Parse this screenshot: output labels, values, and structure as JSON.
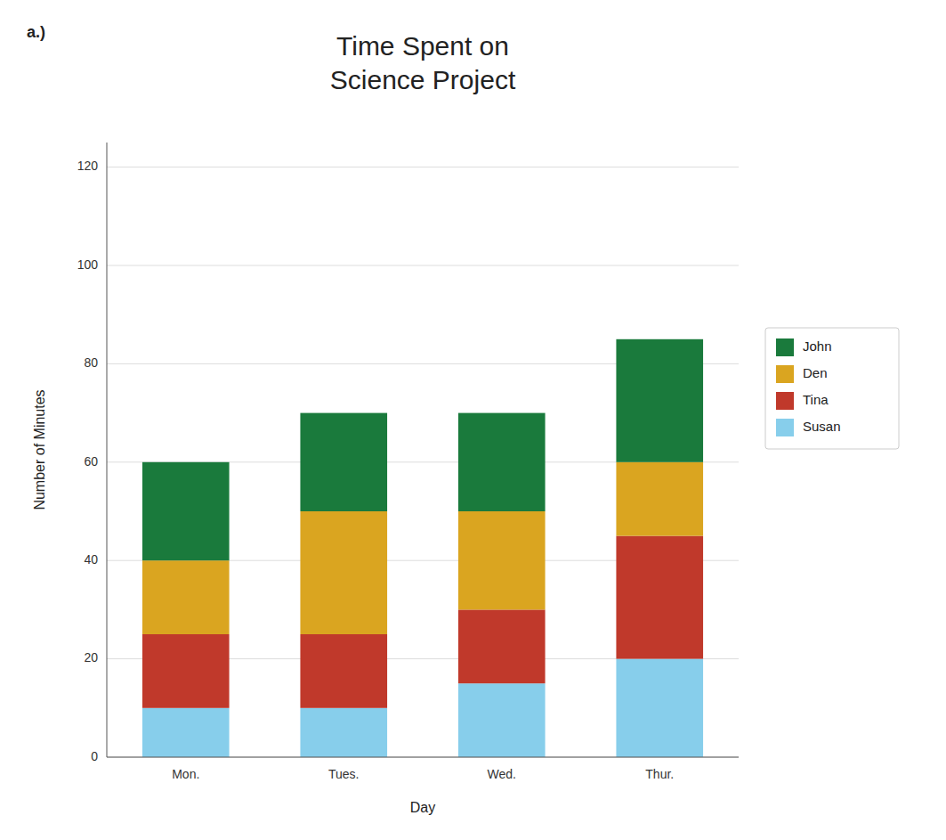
{
  "chart_data": {
    "type": "bar",
    "stacked": true,
    "title": "Time Spent on\nScience Project",
    "annotation": "a.)",
    "xlabel": "Day",
    "ylabel": "Number of Minutes",
    "categories": [
      "Mon.",
      "Tues.",
      "Wed.",
      "Thur."
    ],
    "series": [
      {
        "name": "Susan",
        "color": "#87CEEB",
        "values": [
          10,
          10,
          15,
          20
        ]
      },
      {
        "name": "Tina",
        "color": "#C0392B",
        "values": [
          15,
          15,
          15,
          25
        ]
      },
      {
        "name": "Den",
        "color": "#DAA520",
        "values": [
          15,
          25,
          20,
          15
        ]
      },
      {
        "name": "John",
        "color": "#1A7A3C",
        "values": [
          20,
          20,
          20,
          25
        ]
      }
    ],
    "ylim": [
      0,
      125
    ],
    "yticks": [
      0,
      20,
      40,
      60,
      80,
      100,
      120
    ],
    "grid": true,
    "legend": "right"
  }
}
